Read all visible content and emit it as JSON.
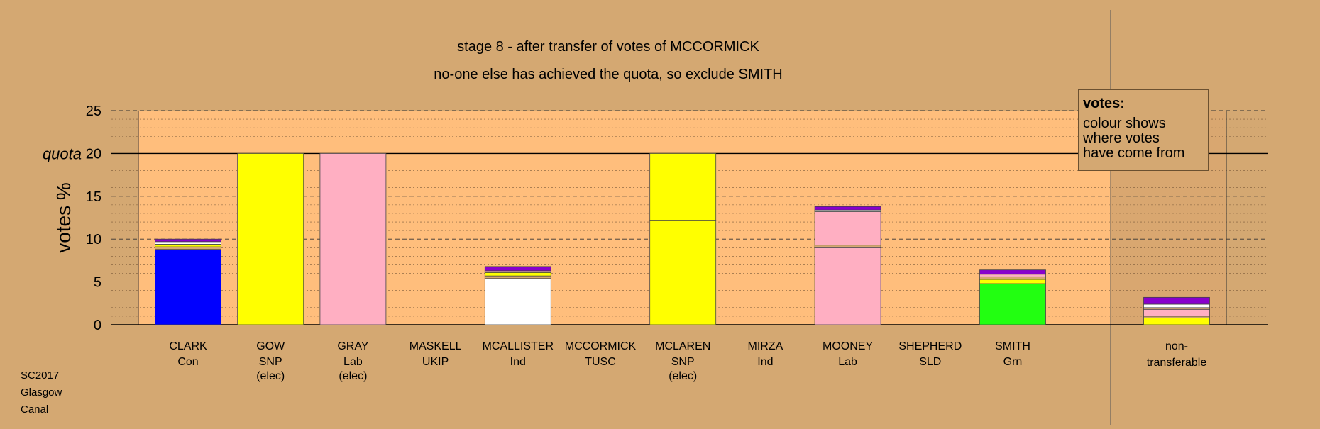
{
  "chart_data": {
    "type": "bar",
    "title": "stage 8 - after transfer of votes of MCCORMICK",
    "subtitle": "no-one else has achieved the quota, so exclude SMITH",
    "ylabel": "votes %",
    "quota_label": "quota",
    "quota": 20,
    "ylim": [
      0,
      25
    ],
    "yticks": [
      0,
      5,
      10,
      15,
      20,
      25
    ],
    "grid": true,
    "candidates": [
      {
        "name": "CLARK",
        "party": "Con",
        "status": "",
        "segments": [
          {
            "value": 8.8,
            "color": "#0000ff"
          },
          {
            "value": 0.3,
            "color": "#d4a872"
          },
          {
            "value": 0.3,
            "color": "#ffff00"
          },
          {
            "value": 0.3,
            "color": "#ffffff"
          },
          {
            "value": 0.3,
            "color": "#8800cc"
          }
        ]
      },
      {
        "name": "GOW",
        "party": "SNP",
        "status": "(elec)",
        "segments": [
          {
            "value": 20,
            "color": "#ffff00"
          }
        ]
      },
      {
        "name": "GRAY",
        "party": "Lab",
        "status": "(elec)",
        "segments": [
          {
            "value": 20,
            "color": "#ffafc2"
          }
        ]
      },
      {
        "name": "MASKELL",
        "party": "UKIP",
        "status": "",
        "segments": []
      },
      {
        "name": "MCALLISTER",
        "party": "Ind",
        "status": "",
        "segments": [
          {
            "value": 5.4,
            "color": "#ffffff"
          },
          {
            "value": 0.3,
            "color": "#d4a872"
          },
          {
            "value": 0.4,
            "color": "#ffff00"
          },
          {
            "value": 0.2,
            "color": "#ffafc2"
          },
          {
            "value": 0.5,
            "color": "#8800cc"
          }
        ]
      },
      {
        "name": "MCCORMICK",
        "party": "TUSC",
        "status": "",
        "segments": []
      },
      {
        "name": "MCLAREN",
        "party": "SNP",
        "status": "(elec)",
        "segments": [
          {
            "value": 12.2,
            "color": "#ffff00"
          },
          {
            "value": 7.8,
            "color": "#ffff00"
          }
        ]
      },
      {
        "name": "MIRZA",
        "party": "Ind",
        "status": "",
        "segments": []
      },
      {
        "name": "MOONEY",
        "party": "Lab",
        "status": "",
        "segments": [
          {
            "value": 9.0,
            "color": "#ffafc2"
          },
          {
            "value": 0.3,
            "color": "#d4a872"
          },
          {
            "value": 3.9,
            "color": "#ffafc2"
          },
          {
            "value": 0.2,
            "color": "#ffffff"
          },
          {
            "value": 0.4,
            "color": "#8800cc"
          }
        ]
      },
      {
        "name": "SHEPHERD",
        "party": "SLD",
        "status": "",
        "segments": []
      },
      {
        "name": "SMITH",
        "party": "Grn",
        "status": "",
        "segments": [
          {
            "value": 4.8,
            "color": "#22ff11"
          },
          {
            "value": 0.5,
            "color": "#ffff00"
          },
          {
            "value": 0.3,
            "color": "#d4a872"
          },
          {
            "value": 0.3,
            "color": "#ffafc2"
          },
          {
            "value": 0.5,
            "color": "#8800cc"
          }
        ]
      }
    ],
    "nontransferable": {
      "label_line1": "non-",
      "label_line2": "transferable",
      "segments": [
        {
          "value": 0.8,
          "color": "#ffff00"
        },
        {
          "value": 0.2,
          "color": "#d4a872"
        },
        {
          "value": 0.8,
          "color": "#ffafc2"
        },
        {
          "value": 0.2,
          "color": "#d4a872"
        },
        {
          "value": 0.4,
          "color": "#ffffff"
        },
        {
          "value": 0.8,
          "color": "#8800cc"
        }
      ]
    },
    "colors": {
      "background": "#d4a872",
      "plot": "#ffbe7c",
      "side_panel": "#d9a770"
    }
  },
  "legend": {
    "heading": "votes:",
    "line1": "colour shows",
    "line2": "where votes",
    "line3": "have come from"
  },
  "corner": {
    "line1": "SC2017",
    "line2": "Glasgow",
    "line3": "Canal"
  }
}
